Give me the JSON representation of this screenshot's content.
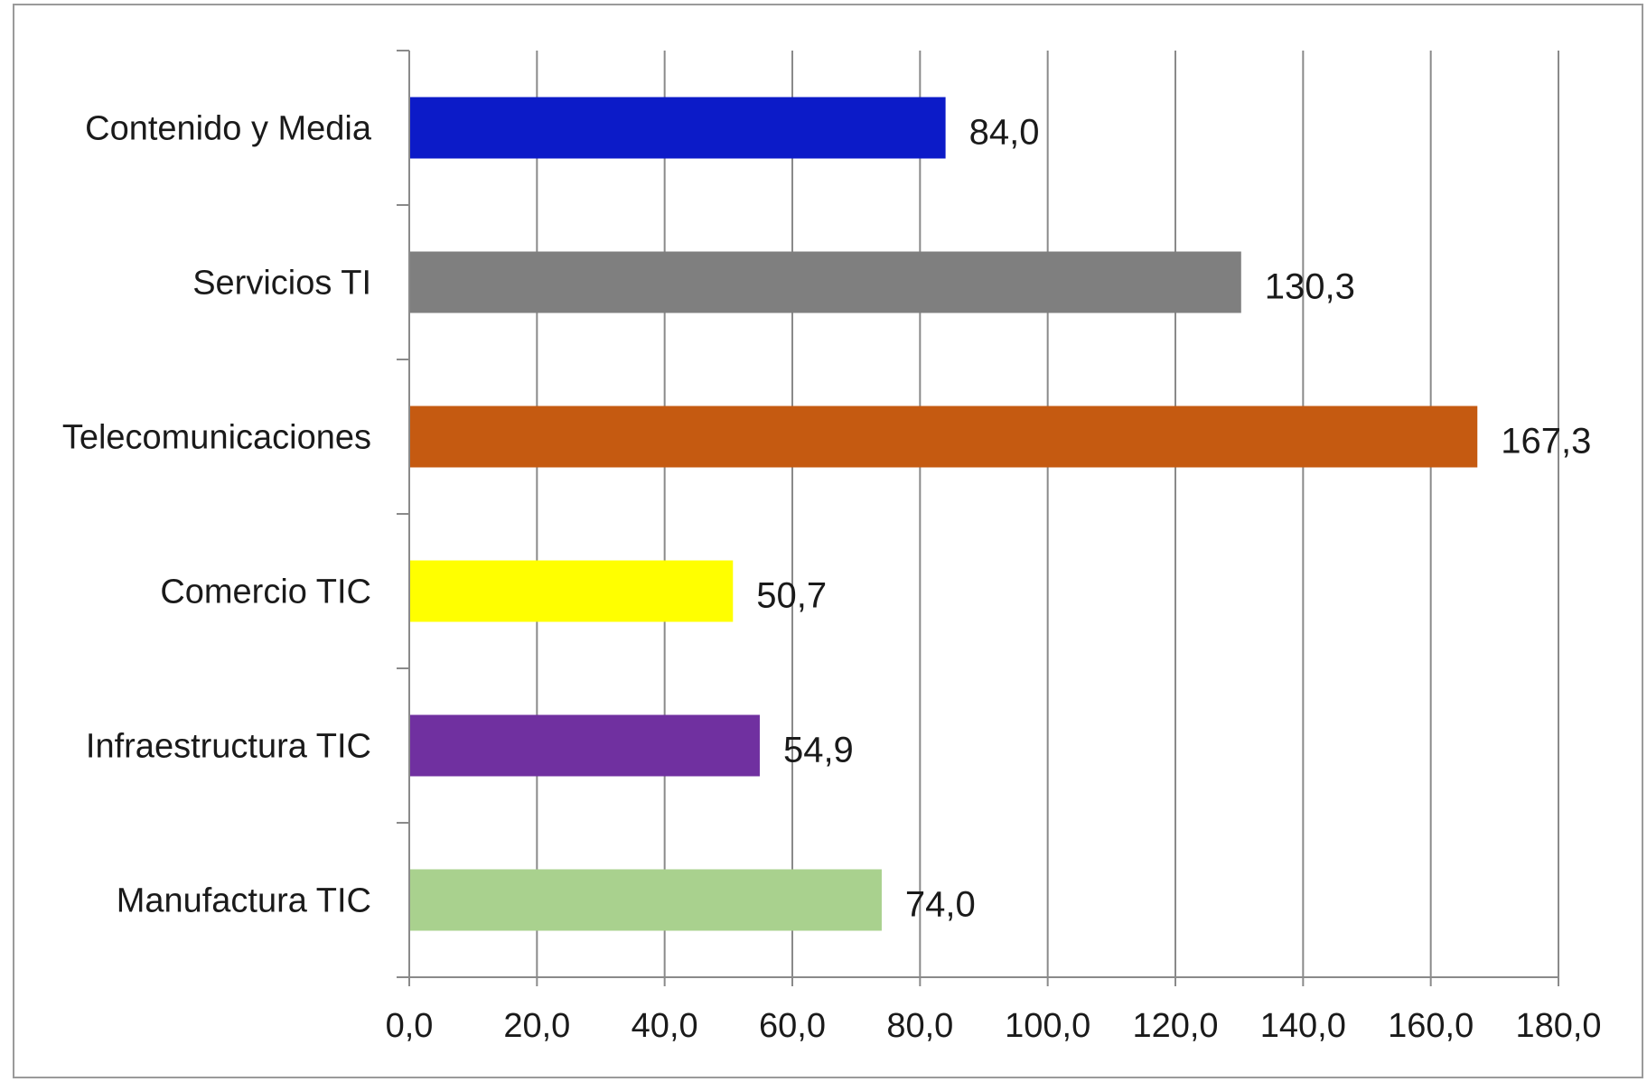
{
  "chart_data": {
    "type": "bar",
    "orientation": "horizontal",
    "categories": [
      "Contenido y Media",
      "Servicios TI",
      "Telecomunicaciones",
      "Comercio TIC",
      "Infraestructura TIC",
      "Manufactura TIC"
    ],
    "values": [
      84.0,
      130.3,
      167.3,
      50.7,
      54.9,
      74.0
    ],
    "value_labels": [
      "84,0",
      "130,3",
      "167,3",
      "50,7",
      "54,9",
      "74,0"
    ],
    "colors": [
      "#0c1bc8",
      "#7f7f7f",
      "#c55a11",
      "#ffff00",
      "#7030a0",
      "#a9d18e"
    ],
    "xlim": [
      0,
      180
    ],
    "x_ticks": [
      0,
      20,
      40,
      60,
      80,
      100,
      120,
      140,
      160,
      180
    ],
    "x_tick_labels": [
      "0,0",
      "20,0",
      "40,0",
      "60,0",
      "80,0",
      "100,0",
      "120,0",
      "140,0",
      "160,0",
      "180,0"
    ],
    "grid": "vertical",
    "legend": "none",
    "title": "",
    "xlabel": "",
    "ylabel": ""
  }
}
